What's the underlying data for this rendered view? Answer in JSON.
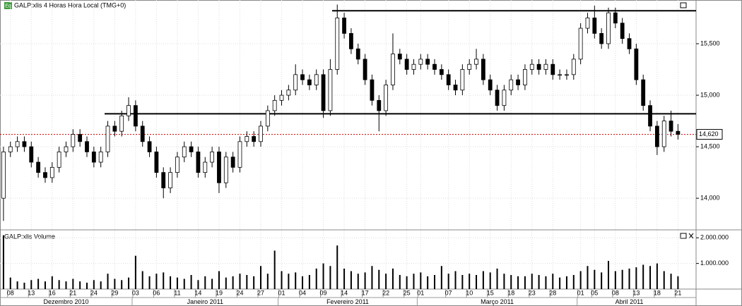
{
  "chart_data": {
    "type": "candlestick",
    "title": "GALP:xlis 4 Horas Hora Local (TMG+0)",
    "badge": "Eq",
    "volume_title": "GALP:xlis Volume",
    "categories": [
      null,
      "08",
      null,
      null,
      "13",
      null,
      null,
      "16",
      null,
      null,
      "21",
      null,
      null,
      "24",
      null,
      null,
      "29",
      null,
      null,
      "03",
      null,
      null,
      "06",
      null,
      null,
      "11",
      null,
      null,
      "14",
      null,
      null,
      "19",
      null,
      null,
      "24",
      null,
      null,
      "27",
      null,
      null,
      "01",
      null,
      null,
      "04",
      null,
      null,
      "09",
      null,
      null,
      "14",
      null,
      null,
      "17",
      null,
      null,
      "22",
      null,
      null,
      "25",
      null,
      "01",
      null,
      null,
      null,
      "07",
      null,
      null,
      "10",
      null,
      null,
      "15",
      null,
      null,
      "18",
      null,
      null,
      "23",
      null,
      null,
      "28",
      null,
      null,
      null,
      "01",
      null,
      "05",
      null,
      null,
      "08",
      null,
      null,
      "13",
      null,
      null,
      "18",
      null,
      null,
      "21"
    ],
    "months": [
      "Dezembro 2010",
      "Janeiro 2011",
      "Fevereiro 2011",
      "Março 2011",
      "Abril 2011"
    ],
    "open": [
      14000,
      14450,
      14500,
      14550,
      14500,
      14350,
      14250,
      14200,
      14300,
      14450,
      14500,
      14620,
      14550,
      14450,
      14350,
      14450,
      14700,
      14650,
      14800,
      14900,
      14700,
      14550,
      14450,
      14250,
      14100,
      14250,
      14400,
      14500,
      14450,
      14250,
      14350,
      14450,
      14150,
      14400,
      14300,
      14550,
      14600,
      14550,
      14700,
      14850,
      14950,
      15000,
      15050,
      15200,
      15150,
      15100,
      15200,
      14850,
      15250,
      15750,
      15600,
      15450,
      15350,
      15150,
      14950,
      14850,
      15100,
      15400,
      15350,
      15250,
      15300,
      15350,
      15300,
      15250,
      15200,
      15100,
      15050,
      15250,
      15300,
      15350,
      15150,
      15050,
      14900,
      15050,
      15150,
      15100,
      15250,
      15300,
      15250,
      15300,
      15200,
      15200,
      15200,
      15350,
      15650,
      15750,
      15600,
      15500,
      15800,
      15700,
      15550,
      15450,
      15150,
      14900,
      14700,
      14500,
      14750,
      14650
    ],
    "high": [
      14500,
      14550,
      14600,
      14600,
      14550,
      14400,
      14300,
      14350,
      14500,
      14550,
      14670,
      14670,
      14600,
      14500,
      14500,
      14750,
      14750,
      14850,
      14980,
      14950,
      14750,
      14600,
      14500,
      14300,
      14300,
      14450,
      14550,
      14550,
      14500,
      14400,
      14500,
      14500,
      14450,
      14450,
      14600,
      14650,
      14650,
      14750,
      14900,
      15000,
      15050,
      15100,
      15300,
      15250,
      15200,
      15250,
      15250,
      15350,
      15880,
      15800,
      15650,
      15500,
      15400,
      15200,
      15000,
      15150,
      15600,
      15450,
      15400,
      15350,
      15400,
      15400,
      15350,
      15300,
      15250,
      15150,
      15300,
      15350,
      15450,
      15400,
      15200,
      15100,
      15100,
      15200,
      15200,
      15300,
      15350,
      15350,
      15350,
      15350,
      15250,
      15250,
      15400,
      15700,
      15800,
      15870,
      15650,
      15850,
      15850,
      15750,
      15600,
      15500,
      15200,
      14950,
      14750,
      14800,
      14850,
      14720
    ],
    "low": [
      13780,
      14400,
      14450,
      14450,
      14300,
      14200,
      14150,
      14150,
      14250,
      14400,
      14450,
      14500,
      14400,
      14300,
      14300,
      14400,
      14600,
      14600,
      14750,
      14650,
      14500,
      14400,
      14200,
      14000,
      14050,
      14200,
      14350,
      14400,
      14200,
      14200,
      14300,
      14050,
      14100,
      14250,
      14250,
      14500,
      14500,
      14500,
      14650,
      14800,
      14900,
      14950,
      15000,
      15100,
      15050,
      15050,
      14780,
      14800,
      15200,
      15550,
      15400,
      15300,
      15100,
      14900,
      14650,
      14800,
      15050,
      15300,
      15200,
      15200,
      15250,
      15250,
      15200,
      15150,
      15050,
      15000,
      15000,
      15200,
      15250,
      15100,
      15000,
      14850,
      14850,
      15000,
      15050,
      15050,
      15200,
      15200,
      15200,
      15150,
      15150,
      15150,
      15150,
      15300,
      15600,
      15550,
      15450,
      15450,
      15650,
      15500,
      15400,
      15100,
      14850,
      14650,
      14420,
      14450,
      14600,
      14570
    ],
    "close": [
      14450,
      14500,
      14550,
      14500,
      14350,
      14250,
      14200,
      14300,
      14450,
      14500,
      14620,
      14550,
      14450,
      14350,
      14450,
      14700,
      14650,
      14800,
      14900,
      14700,
      14550,
      14450,
      14250,
      14100,
      14250,
      14400,
      14500,
      14450,
      14250,
      14350,
      14450,
      14150,
      14400,
      14300,
      14550,
      14600,
      14550,
      14700,
      14850,
      14950,
      15000,
      15050,
      15200,
      15150,
      15100,
      15200,
      14850,
      15250,
      15750,
      15600,
      15450,
      15350,
      15150,
      14950,
      14850,
      15100,
      15400,
      15350,
      15250,
      15300,
      15350,
      15300,
      15250,
      15200,
      15100,
      15050,
      15250,
      15300,
      15350,
      15150,
      15050,
      14900,
      15050,
      15150,
      15100,
      15250,
      15300,
      15250,
      15300,
      15200,
      15200,
      15200,
      15350,
      15650,
      15750,
      15600,
      15500,
      15800,
      15700,
      15550,
      15450,
      15150,
      14900,
      14700,
      14500,
      14750,
      14650,
      14620
    ],
    "volume": [
      2100000,
      450000,
      300000,
      250000,
      350000,
      400000,
      300000,
      500000,
      350000,
      300000,
      400000,
      300000,
      250000,
      350000,
      300000,
      600000,
      400000,
      350000,
      450000,
      1300000,
      700000,
      500000,
      600000,
      650000,
      500000,
      450000,
      400000,
      550000,
      350000,
      500000,
      400000,
      700000,
      450000,
      500000,
      600000,
      550000,
      500000,
      900000,
      600000,
      1500000,
      700000,
      600000,
      650000,
      500000,
      550000,
      800000,
      1000000,
      900000,
      1700000,
      800000,
      700000,
      600000,
      650000,
      900000,
      750000,
      600000,
      800000,
      550000,
      500000,
      600000,
      650000,
      500000,
      550000,
      900000,
      600000,
      700000,
      550000,
      600000,
      550000,
      700000,
      650000,
      800000,
      600000,
      550000,
      500000,
      500000,
      600000,
      550000,
      500000,
      600000,
      450000,
      500000,
      550000,
      700000,
      900000,
      750000,
      650000,
      1100000,
      700000,
      750000,
      800000,
      850000,
      950000,
      900000,
      1000000,
      700000,
      600000,
      500000
    ],
    "ylim": [
      13700,
      15890
    ],
    "yticks": [
      {
        "value": 14000,
        "label": "14,000"
      },
      {
        "value": 14500,
        "label": "14,500"
      },
      {
        "value": 15000,
        "label": "15,000"
      },
      {
        "value": 15500,
        "label": "15,500"
      }
    ],
    "volume_ylim": [
      0,
      2200000
    ],
    "volume_yticks": [
      {
        "value": 1000000,
        "label": "1.000.000"
      },
      {
        "value": 2000000,
        "label": "2.000.000"
      }
    ],
    "last_price": {
      "value": 14620,
      "label": "14,620"
    },
    "levels": [
      15820,
      14820
    ],
    "up_color": "#ffffff",
    "down_color": "#000000",
    "volume_color": "#000000",
    "grid": true
  }
}
